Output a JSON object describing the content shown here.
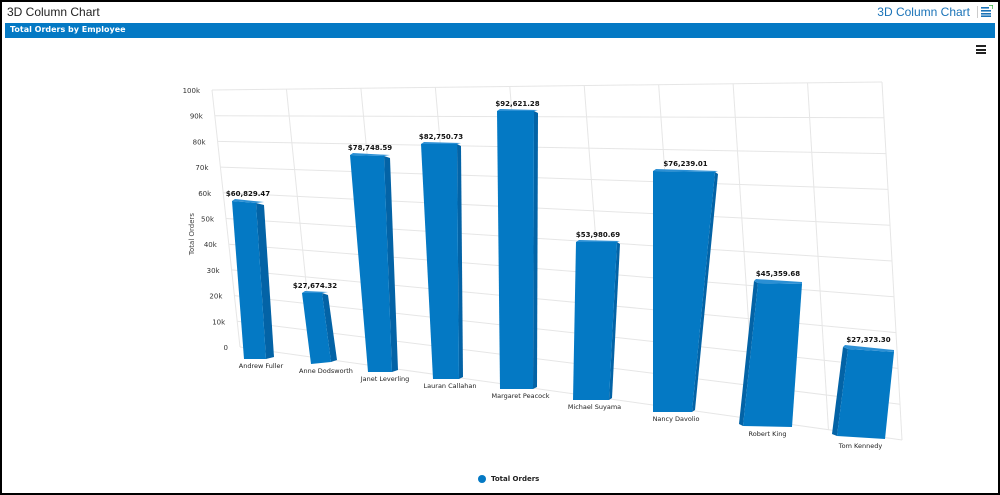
{
  "window": {
    "title": "3D Column Chart",
    "top_right_title": "3D Column Chart",
    "header_band": "Total Orders by Employee"
  },
  "toolbar": {
    "export_icon": "export-icon",
    "context_menu_icon": "hamburger-menu-icon"
  },
  "legend": {
    "items": [
      {
        "label": "Total Orders",
        "color": "#0479c4"
      }
    ]
  },
  "colors": {
    "bar_front": "#0479c4",
    "bar_side": "#0363a6",
    "bar_top": "#2b8fd4",
    "header_band": "#0479c4",
    "link": "#1a73b8"
  },
  "chart_data": {
    "type": "bar",
    "subtype": "3d-column",
    "title": "Total Orders by Employee",
    "xlabel": "",
    "ylabel": "Total Orders",
    "ylim": [
      0,
      100000
    ],
    "y_ticks": [
      "0",
      "10k",
      "20k",
      "30k",
      "40k",
      "50k",
      "60k",
      "70k",
      "80k",
      "90k",
      "100k"
    ],
    "grid": true,
    "legend_position": "bottom",
    "categories": [
      "Andrew Fuller",
      "Anne Dodsworth",
      "Janet Leverling",
      "Lauran Callahan",
      "Margaret Peacock",
      "Michael Suyama",
      "Nancy Davolio",
      "Robert King",
      "Tom Kennedy"
    ],
    "series": [
      {
        "name": "Total Orders",
        "values": [
          60829.47,
          27674.32,
          78748.59,
          82750.73,
          92621.28,
          53980.69,
          76239.01,
          45359.68,
          27373.3
        ]
      }
    ],
    "data_labels": [
      "$60,829.47",
      "$27,674.32",
      "$78,748.59",
      "$82,750.73",
      "$92,621.28",
      "$53,980.69",
      "$76,239.01",
      "$45,359.68",
      "$27,373.30"
    ]
  }
}
